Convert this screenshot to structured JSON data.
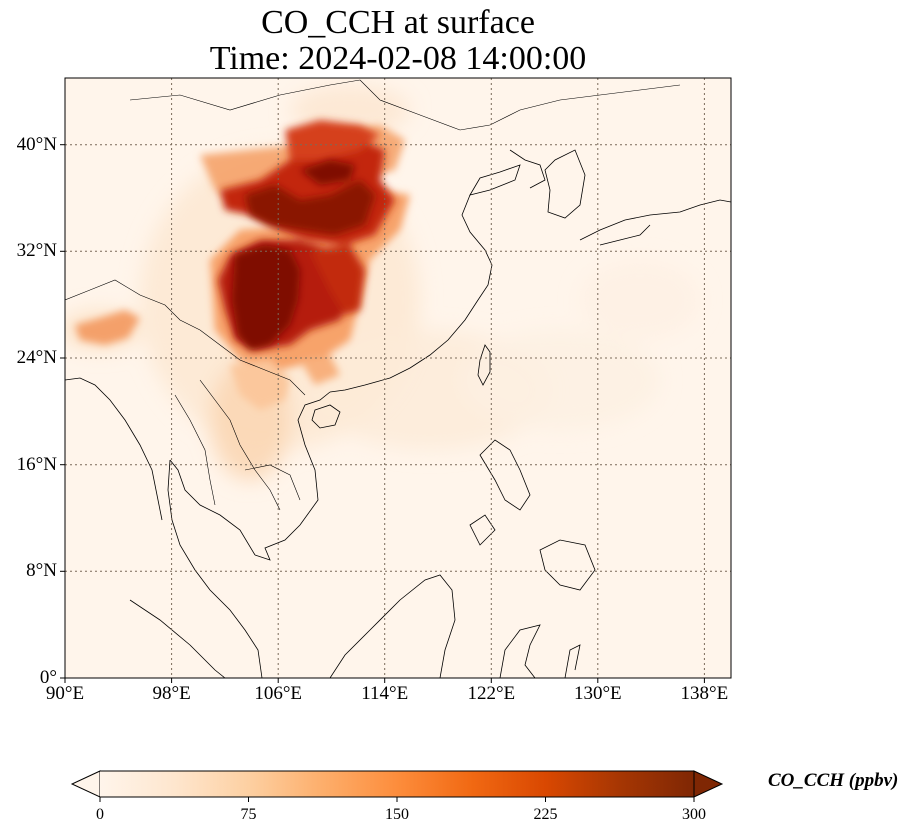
{
  "title": {
    "line1": "CO_CCH at surface",
    "line2": "Time: 2024-02-08 14:00:00"
  },
  "map": {
    "lon_range": [
      90,
      140
    ],
    "lat_range": [
      0,
      45
    ],
    "gridlines": true,
    "lat_ticks": [
      {
        "value": 0,
        "label": "0°"
      },
      {
        "value": 8,
        "label": "8°N"
      },
      {
        "value": 16,
        "label": "16°N"
      },
      {
        "value": 24,
        "label": "24°N"
      },
      {
        "value": 32,
        "label": "32°N"
      },
      {
        "value": 40,
        "label": "40°N"
      }
    ],
    "lon_ticks": [
      {
        "value": 90,
        "label": "90°E"
      },
      {
        "value": 98,
        "label": "98°E"
      },
      {
        "value": 106,
        "label": "106°E"
      },
      {
        "value": 114,
        "label": "114°E"
      },
      {
        "value": 122,
        "label": "122°E"
      },
      {
        "value": 130,
        "label": "130°E"
      },
      {
        "value": 138,
        "label": "138°E"
      }
    ],
    "colors": {
      "background": "#fff5eb",
      "coast": "#000000",
      "grid": "#7a6a5a"
    }
  },
  "colorbar": {
    "label": "CO_CCH (ppbv)",
    "min": 0,
    "max": 300,
    "extend": "both",
    "ticks": [
      {
        "value": 0,
        "label": "0"
      },
      {
        "value": 75,
        "label": "75"
      },
      {
        "value": 150,
        "label": "150"
      },
      {
        "value": 225,
        "label": "225"
      },
      {
        "value": 300,
        "label": "300"
      }
    ],
    "colormap": [
      "#fff5eb",
      "#fee6ce",
      "#fdd0a2",
      "#fdae6b",
      "#fd8d3c",
      "#f16913",
      "#d94801",
      "#a63603",
      "#7f2704"
    ],
    "colormap_name": "OrRd-like"
  }
}
